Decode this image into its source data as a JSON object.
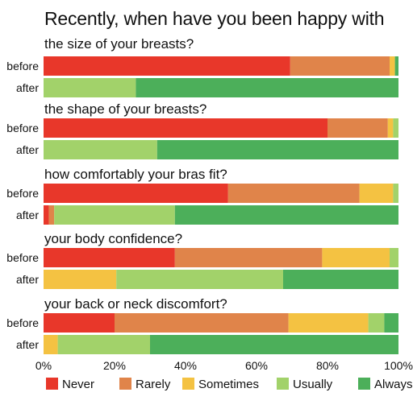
{
  "chart_data": {
    "type": "bar",
    "stacked": true,
    "orientation": "horizontal",
    "title": "Recently, when have you been happy with",
    "xlim": [
      0,
      100
    ],
    "x_ticks": [
      "0%",
      "20%",
      "40%",
      "60%",
      "80%",
      "100%"
    ],
    "legend_position": "bottom",
    "series": [
      {
        "name": "Never",
        "color": "#e8372a"
      },
      {
        "name": "Rarely",
        "color": "#e0844a"
      },
      {
        "name": "Sometimes",
        "color": "#f4c242"
      },
      {
        "name": "Usually",
        "color": "#a2d26a"
      },
      {
        "name": "Always",
        "color": "#4caf5a"
      }
    ],
    "groups": [
      {
        "question": "the size of your breasts?",
        "bars": [
          {
            "label": "before",
            "values": [
              69.5,
              28,
              1.5,
              0,
              1
            ]
          },
          {
            "label": "after",
            "values": [
              0,
              0,
              0,
              26,
              74
            ]
          }
        ]
      },
      {
        "question": "the shape of your breasts?",
        "bars": [
          {
            "label": "before",
            "values": [
              80,
              17,
              1.5,
              1.5,
              0
            ]
          },
          {
            "label": "after",
            "values": [
              0,
              0,
              0,
              32,
              68
            ]
          }
        ]
      },
      {
        "question": "how comfortably your bras fit?",
        "bars": [
          {
            "label": "before",
            "values": [
              52,
              37,
              9.5,
              1.5,
              0
            ]
          },
          {
            "label": "after",
            "values": [
              1.5,
              1.5,
              0,
              34,
              63
            ]
          }
        ]
      },
      {
        "question": "your body confidence?",
        "bars": [
          {
            "label": "before",
            "values": [
              37,
              41.5,
              19,
              2.5,
              0
            ]
          },
          {
            "label": "after",
            "values": [
              0,
              0,
              20.5,
              47,
              32.5
            ]
          }
        ]
      },
      {
        "question": "your back or neck discomfort?",
        "bars": [
          {
            "label": "before",
            "values": [
              20,
              49,
              22.5,
              4.5,
              4
            ]
          },
          {
            "label": "after",
            "values": [
              0,
              0,
              4,
              26,
              70
            ]
          }
        ]
      }
    ]
  }
}
